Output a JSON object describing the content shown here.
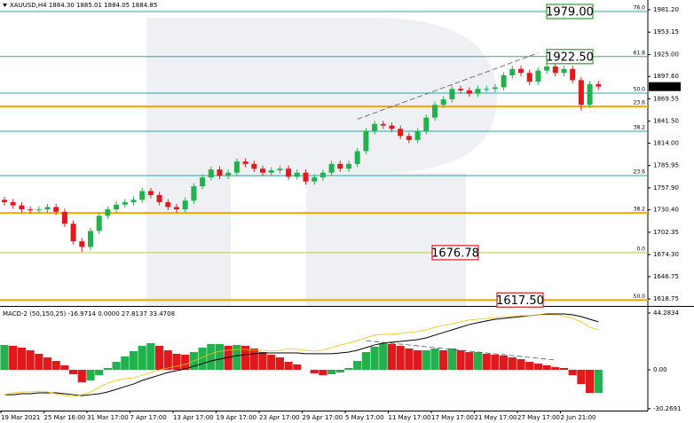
{
  "chart_data": [
    {
      "type": "candlestick",
      "header": "XAUUSD,H4  1884.30 1885.01 1884.05 1884.85",
      "categories": [
        "19 Mar 2021",
        null,
        null,
        null,
        null,
        "25 Mar 16:00",
        null,
        null,
        null,
        null,
        "31 Mar 17:00",
        null,
        null,
        null,
        null,
        "7 Apr 17:00",
        null,
        null,
        null,
        null,
        "13 Apr 17:00",
        null,
        null,
        null,
        null,
        "19 Apr 17:00",
        null,
        null,
        null,
        null,
        "23 Apr 17:00",
        null,
        null,
        null,
        null,
        "29 Apr 17:00",
        null,
        null,
        null,
        null,
        "5 May 17:00",
        null,
        null,
        null,
        null,
        "11 May 17:00",
        null,
        null,
        null,
        null,
        "17 May 17:00",
        null,
        null,
        null,
        null,
        "21 May 17:00",
        null,
        null,
        null,
        null,
        "27 May 17:00",
        null,
        null,
        null,
        null,
        "2 Jun 21:00",
        null,
        null,
        null,
        null
      ],
      "open": [
        1743,
        1740,
        1736,
        1731,
        1730,
        1731,
        1734,
        1728,
        1713,
        1691,
        1684,
        1704,
        1723,
        1731,
        1737,
        1740,
        1743,
        1754,
        1749,
        1740,
        1734,
        1731,
        1742,
        1760,
        1771,
        1781,
        1773,
        1777,
        1791,
        1788,
        1782,
        1777,
        1780,
        1782,
        1772,
        1777,
        1766,
        1771,
        1777,
        1788,
        1782,
        1788,
        1804,
        1829,
        1838,
        1836,
        1832,
        1823,
        1818,
        1829,
        1846,
        1862,
        1869,
        1882,
        1880,
        1876,
        1882,
        1882,
        1884,
        1899,
        1907,
        1902,
        1891,
        1905,
        1910,
        1902,
        1907,
        1893,
        1862,
        1888
      ],
      "high": [
        1747,
        1744,
        1740,
        1735,
        1735,
        1738,
        1738,
        1732,
        1717,
        1695,
        1708,
        1727,
        1735,
        1741,
        1744,
        1747,
        1758,
        1758,
        1753,
        1744,
        1738,
        1746,
        1764,
        1775,
        1785,
        1785,
        1781,
        1795,
        1795,
        1792,
        1786,
        1784,
        1786,
        1786,
        1781,
        1781,
        1775,
        1781,
        1792,
        1792,
        1792,
        1808,
        1833,
        1842,
        1842,
        1840,
        1836,
        1827,
        1833,
        1850,
        1866,
        1873,
        1886,
        1886,
        1884,
        1886,
        1886,
        1888,
        1903,
        1911,
        1911,
        1906,
        1909,
        1914,
        1914,
        1911,
        1911,
        1897,
        1892,
        1892
      ],
      "low": [
        1736,
        1732,
        1727,
        1726,
        1726,
        1727,
        1724,
        1709,
        1687,
        1678,
        1680,
        1700,
        1719,
        1727,
        1733,
        1736,
        1739,
        1745,
        1736,
        1730,
        1727,
        1727,
        1738,
        1756,
        1767,
        1769,
        1769,
        1773,
        1784,
        1778,
        1773,
        1773,
        1776,
        1768,
        1768,
        1762,
        1762,
        1767,
        1773,
        1778,
        1778,
        1784,
        1800,
        1825,
        1832,
        1828,
        1819,
        1814,
        1814,
        1825,
        1842,
        1858,
        1865,
        1876,
        1872,
        1872,
        1878,
        1878,
        1880,
        1895,
        1898,
        1887,
        1887,
        1901,
        1898,
        1898,
        1889,
        1855,
        1858,
        1881
      ],
      "close": [
        1740,
        1736,
        1731,
        1730,
        1731,
        1734,
        1728,
        1713,
        1691,
        1684,
        1704,
        1723,
        1731,
        1737,
        1740,
        1743,
        1754,
        1749,
        1740,
        1734,
        1731,
        1742,
        1760,
        1771,
        1781,
        1773,
        1777,
        1791,
        1788,
        1782,
        1777,
        1780,
        1782,
        1772,
        1777,
        1766,
        1771,
        1777,
        1788,
        1782,
        1788,
        1804,
        1829,
        1838,
        1836,
        1832,
        1823,
        1818,
        1829,
        1846,
        1862,
        1869,
        1882,
        1880,
        1876,
        1882,
        1882,
        1884,
        1899,
        1907,
        1902,
        1891,
        1905,
        1910,
        1902,
        1907,
        1893,
        1862,
        1888,
        1884.85
      ],
      "up_color": "#22b14c",
      "down_color": "#e0191c",
      "ylim": [
        1610,
        1993.4
      ],
      "yticks": [
        {
          "value": 1981.2,
          "label": "1981.20"
        },
        {
          "value": 1953.15,
          "label": "1953.15"
        },
        {
          "value": 1925.0,
          "label": "1925.00"
        },
        {
          "value": 1897.6,
          "label": "1897.60"
        },
        {
          "value": 1869.55,
          "label": "1869.55"
        },
        {
          "value": 1841.5,
          "label": "1841.50"
        },
        {
          "value": 1814.0,
          "label": "1814.00"
        },
        {
          "value": 1785.95,
          "label": "1785.95"
        },
        {
          "value": 1757.9,
          "label": "1757.90"
        },
        {
          "value": 1730.4,
          "label": "1730.40"
        },
        {
          "value": 1702.35,
          "label": "1702.35"
        },
        {
          "value": 1674.3,
          "label": "1674.30"
        },
        {
          "value": 1646.75,
          "label": "1646.75"
        },
        {
          "value": 1618.75,
          "label": "1618.75"
        }
      ],
      "last_price": 1884.85,
      "fib_levels": [
        {
          "name": "76.0",
          "price": 1979.0,
          "color": "#2ba6a6",
          "label_color": "#2b8f8f",
          "width": 1
        },
        {
          "name": "61.8",
          "price": 1922.5,
          "color": "#2ba6a6",
          "label_color": "#2b8f8f",
          "width": 1
        },
        {
          "name": "50.0",
          "price": 1876.7,
          "color": "#2ba6a6",
          "label_color": "#2b8f8f",
          "width": 1
        },
        {
          "name": "23.6",
          "price": 1860.0,
          "color": "#ffa500",
          "label_color": "#e0401c",
          "width": 2
        },
        {
          "name": "38.2",
          "price": 1828.9,
          "color": "#2ba6a6",
          "label_color": "#2b8f8f",
          "width": 1
        },
        {
          "name": "23.6",
          "price": 1773.3,
          "color": "#2ba6a6",
          "label_color": "#2b8f8f",
          "width": 1
        },
        {
          "name": "38.2",
          "price": 1726.6,
          "color": "#ffa500",
          "label_color": "#e0401c",
          "width": 2
        },
        {
          "name": "0.0",
          "price": 1676.78,
          "color": "#b8c85a",
          "label_color": "#8a9a30",
          "width": 1
        },
        {
          "name": "50.0",
          "price": 1617.5,
          "color": "#ffa500",
          "label_color": "#e0401c",
          "width": 2
        }
      ],
      "annotations": [
        {
          "value": 1979.0,
          "label": "1979.00",
          "color": "#2e9b2e"
        },
        {
          "value": 1922.5,
          "label": "1922.50",
          "color": "#2e9b2e"
        },
        {
          "value": 1676.78,
          "label": "1676.78",
          "color": "#e0191c"
        },
        {
          "value": 1617.5,
          "label": "1617.50",
          "color": "#e0191c"
        }
      ],
      "trendlines": [
        {
          "x": [
            41,
            62
          ],
          "values": [
            1844,
            1927
          ]
        }
      ]
    },
    {
      "type": "macd",
      "title": "MACD-2 (50,150,25) -16.9714 0.0000 27.8137 33.4708",
      "histogram": {
        "up_color": "#22b14c",
        "down_color": "#e0191c",
        "values": [
          19.4,
          18.7,
          17.3,
          15.2,
          12.5,
          9.7,
          6.9,
          3.5,
          -3.5,
          -9.7,
          -8.3,
          -4.2,
          1.4,
          6.2,
          10.4,
          14.5,
          18.7,
          20.8,
          18.7,
          15.2,
          12.5,
          11.8,
          13.8,
          17.3,
          20.1,
          20.1,
          18.7,
          19.4,
          18.7,
          16.6,
          13.8,
          11.8,
          9.7,
          6.2,
          4.2,
          0,
          -2.8,
          -4.2,
          -3.5,
          -2.1,
          1.4,
          6.9,
          13.8,
          18.0,
          20.8,
          20.1,
          18.7,
          16.6,
          15.2,
          15.2,
          16.6,
          15.2,
          16.6,
          15.2,
          13.8,
          13.8,
          12.5,
          11.8,
          11.1,
          9.7,
          8.3,
          6.2,
          4.8,
          3.5,
          2.1,
          1.4,
          -4.2,
          -11.1,
          -18.0,
          -18.0
        ]
      },
      "series": [
        {
          "color": "#000000",
          "values": [
            -19.4,
            -19.4,
            -18.7,
            -18.7,
            -18.0,
            -18.0,
            -18.0,
            -18.7,
            -19.4,
            -20.1,
            -19.4,
            -18.7,
            -17.3,
            -15.2,
            -13.1,
            -11.1,
            -8.3,
            -6.2,
            -4.2,
            -2.1,
            -0.7,
            0.7,
            2.8,
            4.8,
            6.9,
            8.3,
            9.7,
            11.1,
            11.8,
            12.5,
            13.1,
            13.1,
            13.1,
            13.1,
            13.1,
            12.5,
            12.5,
            12.5,
            12.5,
            13.1,
            13.8,
            15.2,
            17.3,
            19.4,
            20.8,
            21.5,
            22.1,
            22.8,
            23.5,
            24.9,
            27.0,
            29.1,
            31.1,
            33.2,
            35.3,
            36.7,
            38.1,
            39.4,
            40.1,
            40.8,
            41.5,
            42.2,
            42.9,
            43.6,
            43.6,
            43.6,
            42.9,
            41.5,
            39.4,
            37.4
          ]
        },
        {
          "color": "#f2c200",
          "values": [
            -19.4,
            -18.0,
            -17.3,
            -17.3,
            -16.6,
            -17.3,
            -18.7,
            -20.1,
            -20.8,
            -19.4,
            -17.3,
            -13.8,
            -10.4,
            -8.3,
            -6.9,
            -6.2,
            -4.2,
            -2.1,
            0,
            1.4,
            2.8,
            4.2,
            6.9,
            9.7,
            12.5,
            14.5,
            15.2,
            15.9,
            15.9,
            15.2,
            15.2,
            14.5,
            15.2,
            16.6,
            15.9,
            15.2,
            14.5,
            15.2,
            17.3,
            19.4,
            20.8,
            22.8,
            24.9,
            27.0,
            27.7,
            27.7,
            28.4,
            29.1,
            29.8,
            31.1,
            33.2,
            34.6,
            36.0,
            37.4,
            38.8,
            39.4,
            40.1,
            40.8,
            41.5,
            41.5,
            42.2,
            42.2,
            42.9,
            42.9,
            42.9,
            42.2,
            40.1,
            37.4,
            33.2,
            31.1
          ]
        }
      ],
      "ylim": [
        -31.8,
        48.4
      ],
      "yticks": [
        44.2834,
        {
          "value": 0,
          "label": "0.00"
        },
        -30.2691
      ],
      "trendlines": [
        {
          "x": [
            42,
            64
          ],
          "values": [
            22.8,
            7.6
          ]
        }
      ]
    }
  ]
}
